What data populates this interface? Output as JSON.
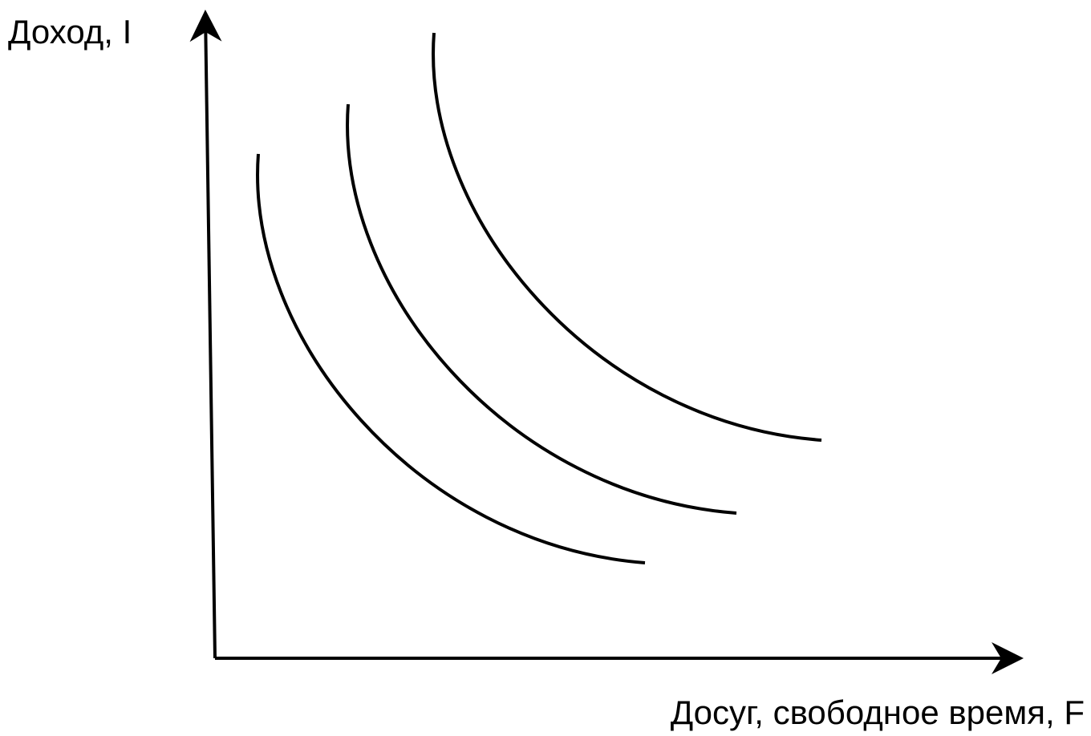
{
  "axes": {
    "y_label": "Доход, I",
    "x_label": "Досуг, свободное время, F"
  }
}
